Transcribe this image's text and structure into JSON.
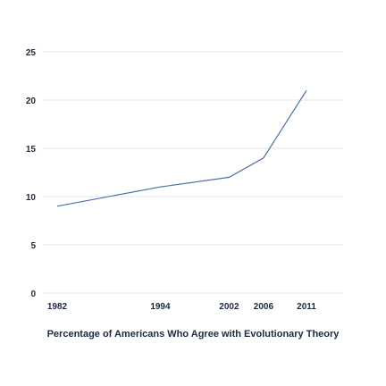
{
  "chart_data": {
    "type": "line",
    "title": "Percentage of Americans Who Agree with Evolutionary Theory",
    "xlabel": "",
    "ylabel": "",
    "x": [
      1982,
      1994,
      2002,
      2006,
      2011
    ],
    "x_tick_labels": [
      "1982",
      "1994",
      "2002",
      "2006",
      "2011"
    ],
    "y_ticks": [
      0,
      5,
      10,
      15,
      20,
      25
    ],
    "ylim": [
      0,
      25
    ],
    "xlim": [
      1982,
      2011
    ],
    "series": [
      {
        "values": [
          9,
          11,
          12,
          14,
          21
        ]
      }
    ],
    "grid": true,
    "legend": "none",
    "colors": {
      "line": "#4a6fa5",
      "grid": "#e6e6e6",
      "text": "#1a2a44"
    }
  }
}
